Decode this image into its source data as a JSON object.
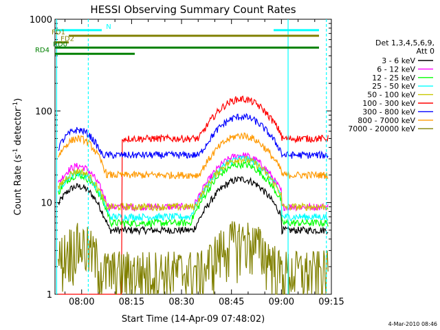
{
  "chart_data": {
    "type": "line",
    "title": "HESSI Observing Summary Count Rates",
    "xlabel": "Start Time (14-Apr-09 07:48:02)",
    "ylabel_main": "Count Rate (s",
    "ylabel_sup1": "-1",
    "ylabel_mid": " detector",
    "ylabel_sup2": "-1",
    "ylabel_end": ")",
    "yscale": "log",
    "ylim": [
      1,
      1000
    ],
    "xlim_minutes": [
      -48,
      35
    ],
    "x_ticks": [
      {
        "m": -40,
        "label": "08:00"
      },
      {
        "m": -25,
        "label": "08:15"
      },
      {
        "m": -10,
        "label": "08:30"
      },
      {
        "m": 5,
        "label": "08:45"
      },
      {
        "m": 20,
        "label": "09:00"
      },
      {
        "m": 35,
        "label": "09:15"
      }
    ],
    "y_ticks": [
      {
        "v": 1,
        "label": "1"
      },
      {
        "v": 10,
        "label": "10"
      },
      {
        "v": 100,
        "label": "100"
      },
      {
        "v": 1000,
        "label": "1000"
      }
    ],
    "legend_header": [
      "Det 1,3,4,5,6,9,",
      "Att 0"
    ],
    "legend_position": "right",
    "series": [
      {
        "name": "3 - 6 keV",
        "color": "#000000",
        "base": 5,
        "p1": 15,
        "p2": 17
      },
      {
        "name": "6 - 12 keV",
        "color": "#ff00ff",
        "base": 9,
        "p1": 25,
        "p2": 31
      },
      {
        "name": "12 - 25 keV",
        "color": "#00ff00",
        "base": 6,
        "p1": 20,
        "p2": 25
      },
      {
        "name": "25 - 50 keV",
        "color": "#00ffff",
        "base": 7,
        "p1": 21,
        "p2": 29
      },
      {
        "name": "50 - 100 keV",
        "color": "#c8c800",
        "base": 9,
        "p1": 22,
        "p2": 28
      },
      {
        "name": "100 - 300 keV",
        "color": "#ff0000",
        "base": 50,
        "p1": 0,
        "p2": 125
      },
      {
        "name": "300 - 800 keV",
        "color": "#0000ff",
        "base": 33,
        "p1": 62,
        "p2": 80
      },
      {
        "name": "800 - 7000 keV",
        "color": "#ff9900",
        "base": 20,
        "p1": 50,
        "p2": 50
      },
      {
        "name": "7000 - 20000 keV",
        "color": "#808000",
        "base": 1.5,
        "p1": 3,
        "p2": 3
      }
    ],
    "flags": [
      {
        "label": "N",
        "color": "#00ffff",
        "y": 760
      },
      {
        "label": "FD1",
        "color": "#808000",
        "y": 660
      },
      {
        "label": "FD2",
        "color": "#808000",
        "y": 560
      },
      {
        "label": "RD0",
        "color": "#008000",
        "y": 490
      },
      {
        "label": "RD4",
        "color": "#008000",
        "y": 420
      }
    ],
    "footer_date": "4-Mar-2010 08:46"
  }
}
